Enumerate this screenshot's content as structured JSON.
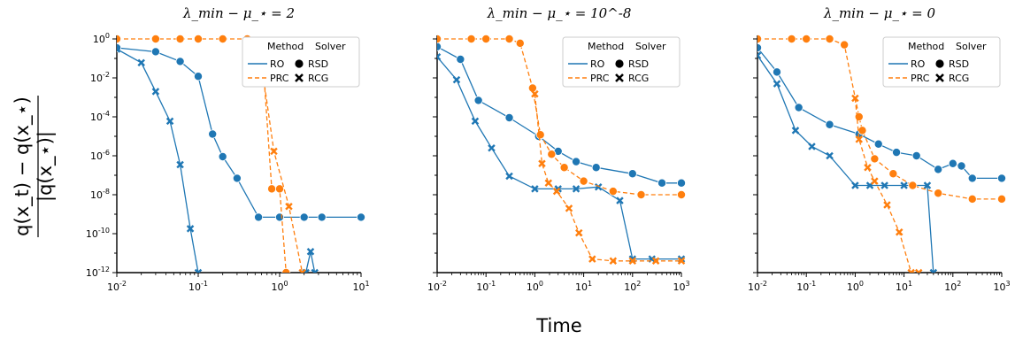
{
  "figure": {
    "xlabel": "Time",
    "ylabel_line1": "q(x_t) − q(x_⋆)",
    "ylabel_line2": "|q(x_⋆)|"
  },
  "colors": {
    "RO": "#1f77b4",
    "PRC": "#ff7f0e"
  },
  "legend": {
    "method_header": "Method",
    "solver_header": "Solver",
    "methods": [
      "RO",
      "PRC"
    ],
    "solvers": [
      "RSD",
      "RCG"
    ],
    "solver_markers": {
      "RSD": "circle",
      "RCG": "x"
    }
  },
  "chart_data": [
    {
      "type": "line",
      "title": "λ_min − μ_⋆ = 2",
      "xscale": "log",
      "yscale": "log",
      "xlim": [
        0.01,
        10
      ],
      "ylim": [
        1e-12,
        1
      ],
      "xticks": [
        "10^-2",
        "10^-1",
        "10^0",
        "10^1"
      ],
      "yticks": [
        "10^0",
        "10^-2",
        "10^-4",
        "10^-6",
        "10^-8",
        "10^-10",
        "10^-12"
      ],
      "series": [
        {
          "method": "RO",
          "solver": "RSD",
          "x": [
            0.01,
            0.03,
            0.06,
            0.1,
            0.15,
            0.2,
            0.3,
            0.55,
            1.0,
            2.0,
            3.3,
            10
          ],
          "y": [
            0.35,
            0.22,
            0.07,
            0.012,
            1.3e-05,
            9e-07,
            7e-08,
            7e-10,
            7e-10,
            7e-10,
            7e-10,
            7e-10
          ]
        },
        {
          "method": "RO",
          "solver": "RCG",
          "x": [
            0.01,
            0.02,
            0.03,
            0.045,
            0.06,
            0.08,
            0.1
          ],
          "y": [
            0.3,
            0.06,
            0.002,
            6e-05,
            3.5e-07,
            1.8e-10,
            1e-12
          ]
        },
        {
          "method": "RO",
          "solver": "RCG",
          "x": [
            2.1,
            2.4,
            2.7
          ],
          "y": [
            1e-12,
            1.2e-11,
            1e-12
          ]
        },
        {
          "method": "PRC",
          "solver": "RSD",
          "x": [
            0.01,
            0.03,
            0.06,
            0.1,
            0.2,
            0.4,
            0.6,
            0.8,
            1.0,
            1.2
          ],
          "y": [
            1.0,
            1.0,
            1.0,
            1.0,
            1.0,
            1.0,
            0.7,
            2e-08,
            2e-08,
            1e-12
          ]
        },
        {
          "method": "PRC",
          "solver": "RCG",
          "x": [
            0.6,
            0.85,
            1.3,
            1.9
          ],
          "y": [
            0.05,
            1.7e-06,
            2.5e-09,
            1e-12
          ]
        }
      ]
    },
    {
      "type": "line",
      "title": "λ_min − μ_⋆ = 10^-8",
      "xscale": "log",
      "yscale": "log",
      "xlim": [
        0.01,
        1000
      ],
      "ylim": [
        1e-12,
        1
      ],
      "xticks": [
        "10^-2",
        "10^-1",
        "10^0",
        "10^1",
        "10^2",
        "10^3"
      ],
      "series": [
        {
          "method": "RO",
          "solver": "RSD",
          "x": [
            0.01,
            0.03,
            0.07,
            0.3,
            1.2,
            3,
            7,
            18,
            100,
            400,
            1000
          ],
          "y": [
            0.4,
            0.09,
            0.0007,
            9e-05,
            1e-05,
            1.7e-06,
            5e-07,
            2.5e-07,
            1.2e-07,
            4e-08,
            4e-08
          ]
        },
        {
          "method": "RO",
          "solver": "RCG",
          "x": [
            0.01,
            0.025,
            0.06,
            0.13,
            0.3,
            1.0,
            3,
            7,
            20,
            55,
            100,
            250,
            1000
          ],
          "y": [
            0.12,
            0.008,
            6e-05,
            2.5e-06,
            9e-08,
            2e-08,
            2e-08,
            2e-08,
            2.5e-08,
            5e-09,
            5e-12,
            5e-12,
            5e-12
          ]
        },
        {
          "method": "PRC",
          "solver": "RSD",
          "x": [
            0.01,
            0.05,
            0.1,
            0.3,
            0.5,
            0.9,
            1.3,
            2.2,
            4,
            10,
            40,
            150,
            1000
          ],
          "y": [
            1.0,
            1.0,
            1.0,
            1.0,
            0.6,
            0.003,
            1.2e-05,
            1.2e-06,
            2.5e-07,
            5e-08,
            1.5e-08,
            1e-08,
            1e-08
          ]
        },
        {
          "method": "PRC",
          "solver": "RCG",
          "x": [
            1.0,
            1.4,
            1.9,
            2.8,
            5,
            8,
            15,
            40,
            100,
            300,
            1000
          ],
          "y": [
            0.0015,
            4e-07,
            4e-08,
            1.5e-08,
            2e-09,
            1.1e-10,
            5e-12,
            4e-12,
            4e-12,
            4e-12,
            4e-12
          ]
        }
      ]
    },
    {
      "type": "line",
      "title": "λ_min − μ_⋆ = 0",
      "xscale": "log",
      "yscale": "log",
      "xlim": [
        0.01,
        1000
      ],
      "ylim": [
        1e-12,
        1
      ],
      "xticks": [
        "10^-2",
        "10^-1",
        "10^0",
        "10^1",
        "10^2",
        "10^3"
      ],
      "series": [
        {
          "method": "RO",
          "solver": "RSD",
          "x": [
            0.01,
            0.025,
            0.07,
            0.3,
            1.2,
            3,
            7,
            18,
            50,
            100,
            150,
            250,
            1000
          ],
          "y": [
            0.35,
            0.02,
            0.0003,
            4e-05,
            1.3e-05,
            4e-06,
            1.5e-06,
            1e-06,
            2e-07,
            4e-07,
            3e-07,
            7e-08,
            7e-08
          ]
        },
        {
          "method": "RO",
          "solver": "RCG",
          "x": [
            0.01,
            0.025,
            0.06,
            0.13,
            0.3,
            1.0,
            2,
            4,
            10,
            30,
            40
          ],
          "y": [
            0.14,
            0.005,
            2e-05,
            3e-06,
            1e-06,
            3e-08,
            3e-08,
            3e-08,
            3e-08,
            3e-08,
            1e-12
          ]
        },
        {
          "method": "PRC",
          "solver": "RSD",
          "x": [
            0.01,
            0.05,
            0.1,
            0.3,
            0.6,
            1.2,
            1.4,
            2.5,
            6,
            15,
            50,
            250,
            1000
          ],
          "y": [
            1.0,
            1.0,
            1.0,
            1.0,
            0.5,
            0.0001,
            2e-05,
            7e-07,
            1.2e-07,
            3e-08,
            1.2e-08,
            6e-09,
            6e-09
          ]
        },
        {
          "method": "PRC",
          "solver": "RCG",
          "x": [
            1.0,
            1.2,
            1.8,
            2.5,
            4.5,
            8,
            14,
            20
          ],
          "y": [
            0.0009,
            7e-06,
            2.5e-07,
            5e-08,
            3e-09,
            1.2e-10,
            1e-12,
            1e-12
          ]
        }
      ]
    }
  ]
}
